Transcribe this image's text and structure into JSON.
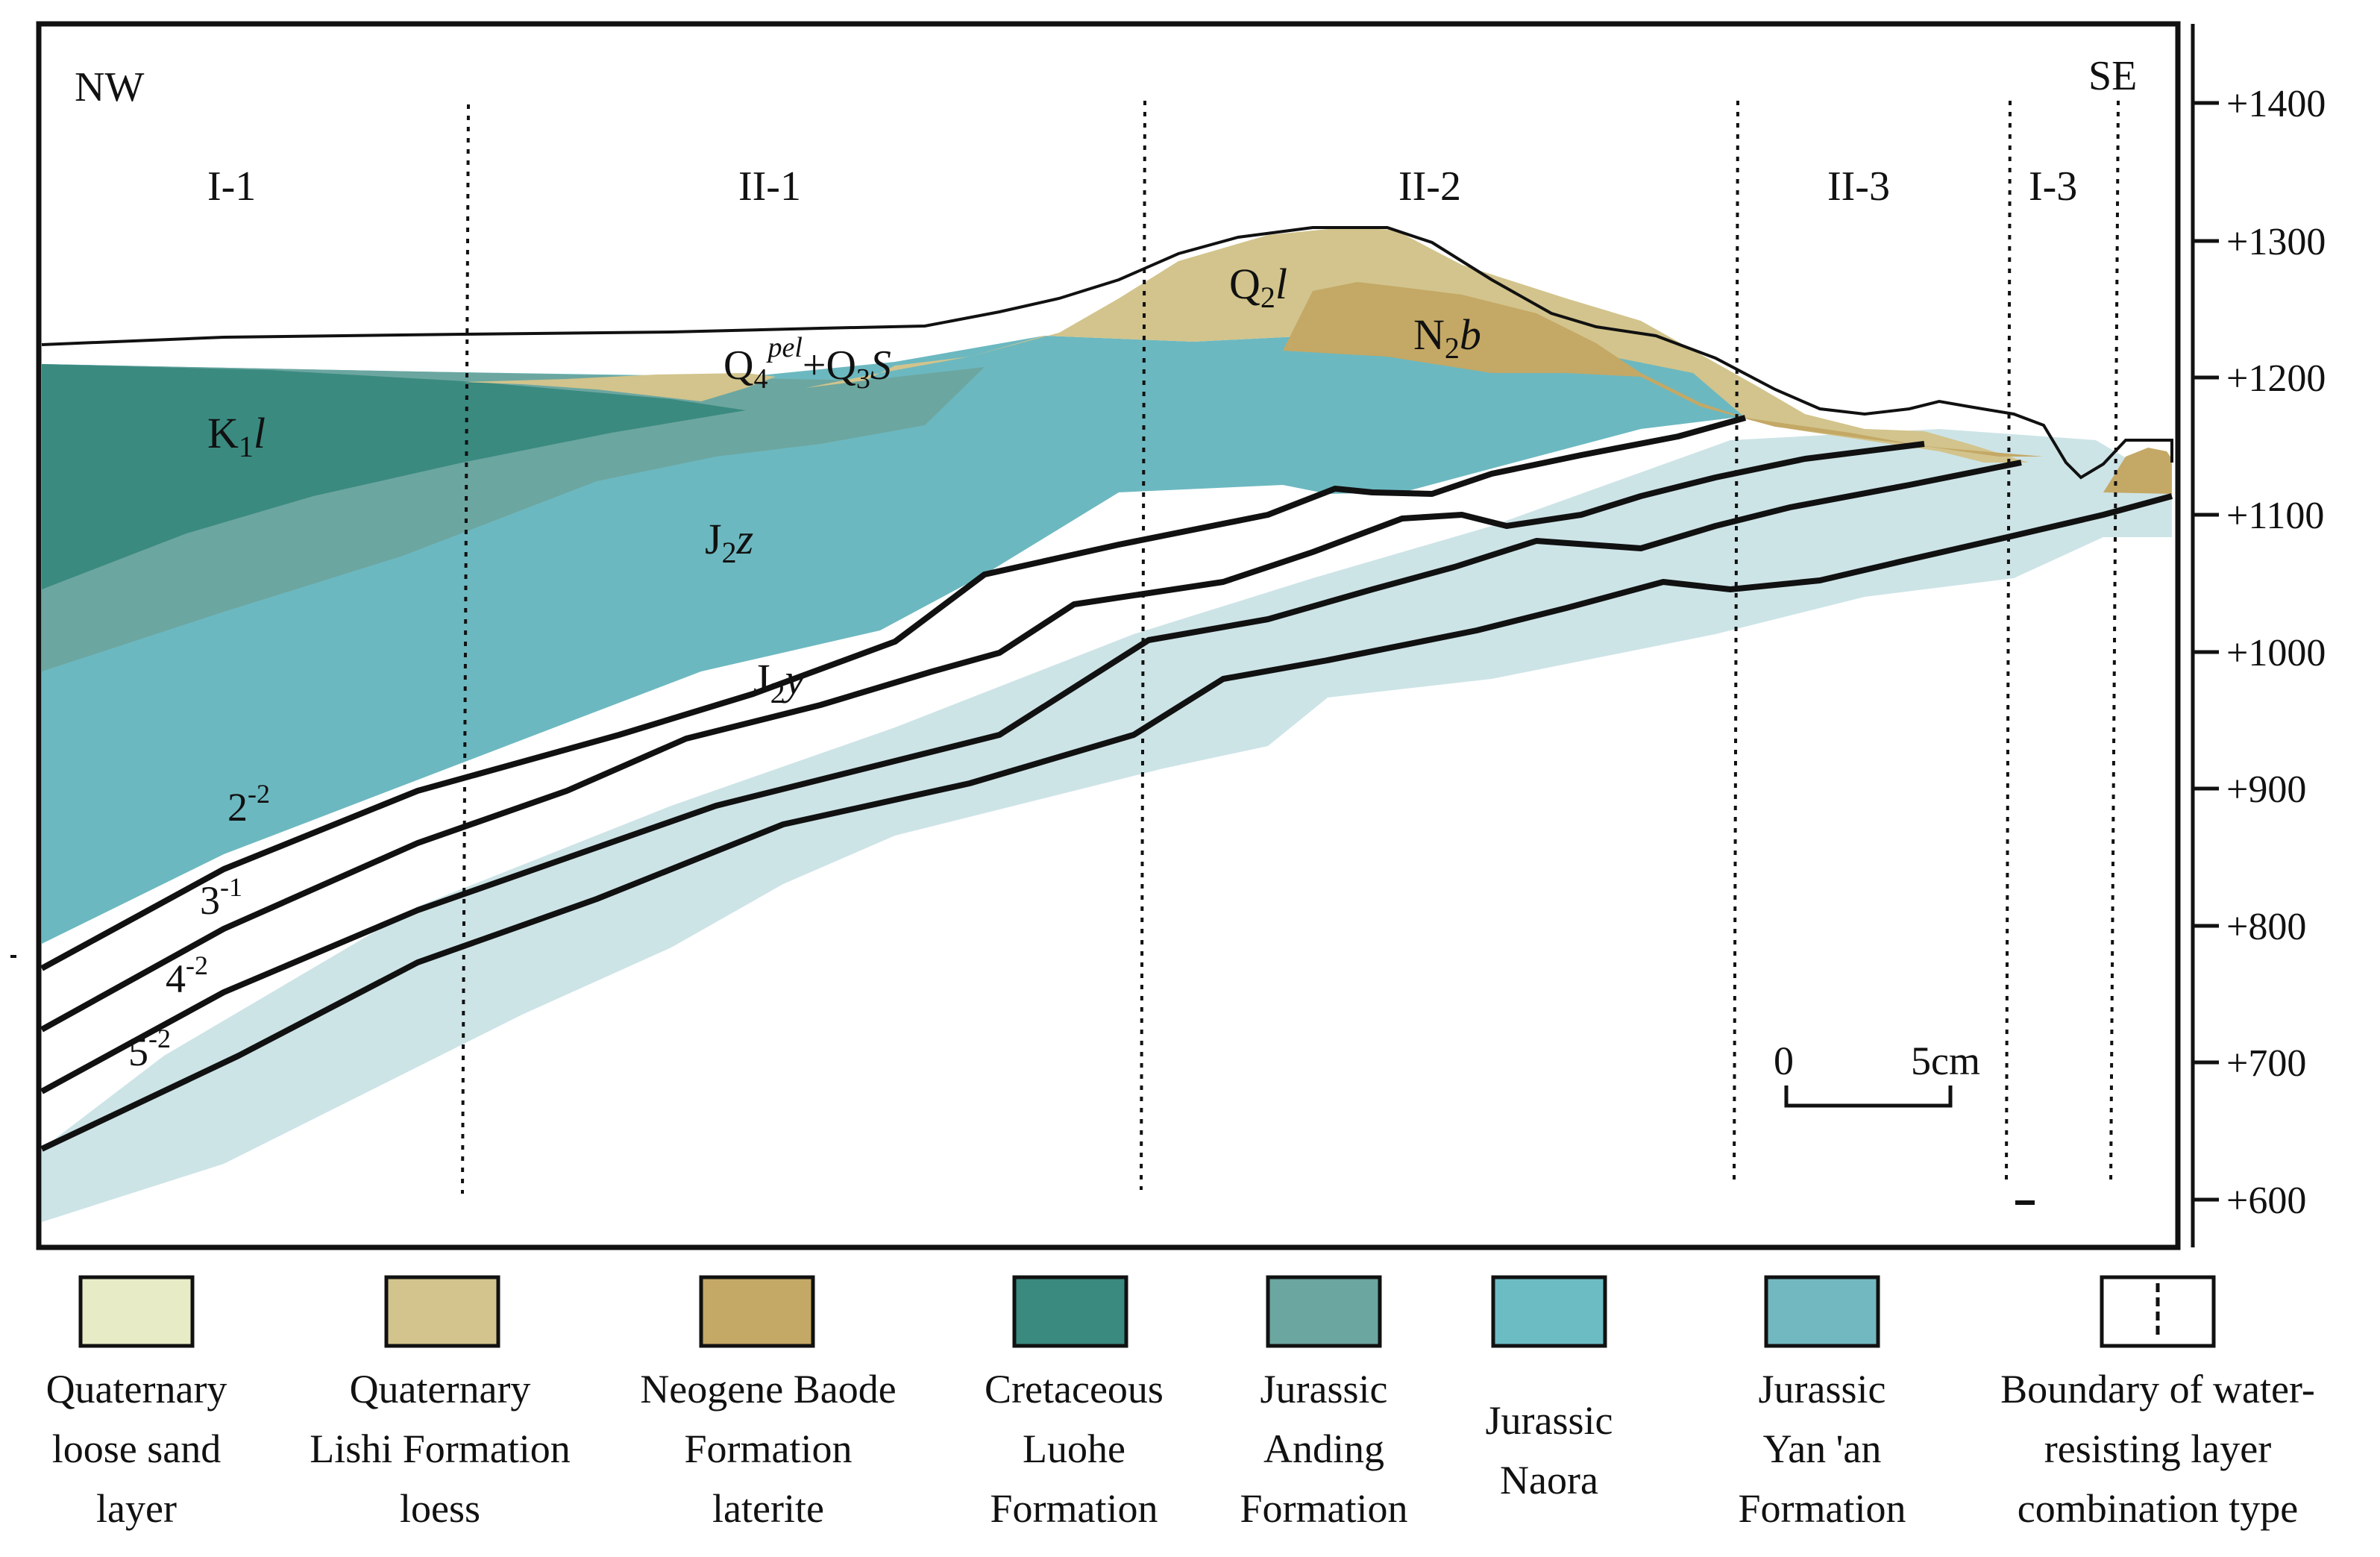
{
  "directions": {
    "left": "NW",
    "right": "SE"
  },
  "zones": [
    "I-1",
    "II-1",
    "II-2",
    "II-3",
    "I-3"
  ],
  "elevation_axis": [
    "+1400",
    "+1300",
    "+1200",
    "+1100",
    "+1000",
    "+900",
    "+800",
    "+700",
    "+600"
  ],
  "formation_labels": {
    "k1l": {
      "base": "K",
      "sub": "1",
      "tail": "l"
    },
    "q2l": {
      "base": "Q",
      "sub": "2",
      "tail": "l"
    },
    "n2b": {
      "base": "N",
      "sub": "2",
      "tail": "b"
    },
    "j2z": {
      "base": "J",
      "sub": "2",
      "tail": "z"
    },
    "j2y": {
      "base": "J",
      "sub": "2",
      "tail": "y"
    },
    "q4q3": {
      "a": "Q",
      "a_sub": "4",
      "a_sup": "pel",
      "plus": "+Q",
      "b_sub": "3",
      "b": "S"
    }
  },
  "coal_seams": [
    {
      "base": "2",
      "sup": "-2"
    },
    {
      "base": "3",
      "sup": "-1"
    },
    {
      "base": "4",
      "sup": "-2"
    },
    {
      "base": "5",
      "sup": "-2"
    }
  ],
  "scale_bar": {
    "start": "0",
    "end": "5cm"
  },
  "legend": [
    {
      "lines": [
        "Quaternary",
        "loose sand",
        "layer"
      ],
      "color": "#e8ecc6"
    },
    {
      "lines": [
        "Quaternary",
        "Lishi Formation",
        "loess"
      ],
      "color": "#d2c48c"
    },
    {
      "lines": [
        "Neogene Baode",
        "Formation",
        "laterite"
      ],
      "color": "#c4a865"
    },
    {
      "lines": [
        "Cretaceous",
        "Luohe",
        "Formation"
      ],
      "color": "#3a8a80"
    },
    {
      "lines": [
        "Jurassic",
        "Anding",
        "Formation"
      ],
      "color": "#6ea8a2"
    },
    {
      "lines": [
        "Jurassic",
        "Naora"
      ],
      "color": "#6cbcc4"
    },
    {
      "lines": [
        "Jurassic",
        "Yan 'an",
        "Formation"
      ],
      "color": "#72b8c0"
    },
    {
      "lines": [
        "Boundary of water-",
        "resisting layer",
        "combination type"
      ],
      "color": "#ffffff"
    }
  ]
}
